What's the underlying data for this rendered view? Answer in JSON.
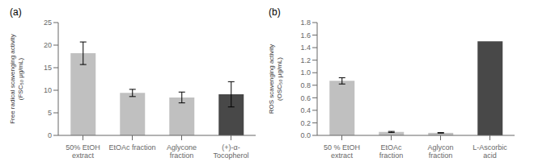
{
  "chart_data": [
    {
      "type": "bar",
      "title": "(a)",
      "categories": [
        "50% EtOH\nextract",
        "EtOAc fraction",
        "Aglycone\nfraction",
        "(+)-α-\nTocopherol"
      ],
      "values": [
        18.2,
        9.4,
        8.4,
        9.1
      ],
      "errors": [
        2.5,
        0.8,
        1.2,
        2.8
      ],
      "colors": [
        "#c0c0c0",
        "#c0c0c0",
        "#c0c0c0",
        "#484848"
      ],
      "ylabel": "Free radical scavenging activity\n(FSC₅₀ μg/mL)",
      "ylim": [
        0,
        25
      ],
      "yticks": [
        0,
        5,
        10,
        15,
        20,
        25
      ],
      "grid": false
    },
    {
      "type": "bar",
      "title": "(b)",
      "categories": [
        "50 % EtOH\nextract",
        "EtOAc\nfraction",
        "Aglycon\nfraction",
        "L-Ascorbic\nacid"
      ],
      "values": [
        0.87,
        0.055,
        0.04,
        1.5
      ],
      "errors": [
        0.05,
        0.008,
        0.004,
        0.0
      ],
      "colors": [
        "#c0c0c0",
        "#c0c0c0",
        "#c0c0c0",
        "#484848"
      ],
      "ylabel": "ROS scavenging activity\n(OSC₅₀ μg/mL)",
      "ylim": [
        0,
        1.8
      ],
      "yticks": [
        {
          "value": 0,
          "label": "0.0"
        },
        0.2,
        0.4,
        0.6,
        0.8,
        {
          "value": 1,
          "label": "1.0"
        },
        1.2,
        1.4,
        1.6,
        1.8
      ],
      "grid": false
    }
  ]
}
